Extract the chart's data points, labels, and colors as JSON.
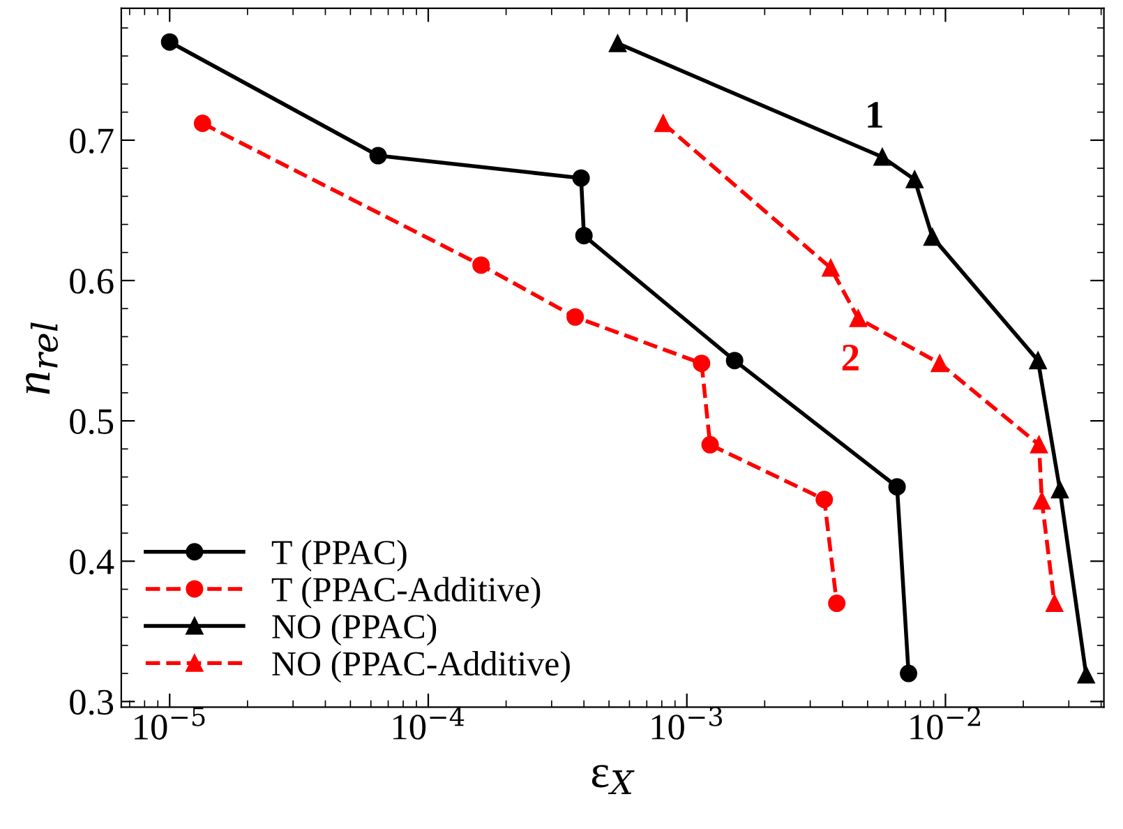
{
  "chart_data": {
    "type": "line",
    "xlabel": "ε$_{X}$",
    "ylabel": "n$_{rel}$",
    "log": "x",
    "grid": false,
    "legend": "bottom left",
    "xlim": [
      6.5e-06,
      0.041
    ],
    "ylim": [
      0.296,
      0.794
    ],
    "xticks": [
      {
        "value": 1e-05,
        "label": "10$^{−5}$"
      },
      {
        "value": 0.0001,
        "label": "10$^{−4}$"
      },
      {
        "value": 0.001,
        "label": "10$^{−3}$"
      },
      {
        "value": 0.01,
        "label": "10$^{−2}$"
      }
    ],
    "yticks": [
      0.3,
      0.4,
      0.5,
      0.6,
      0.7
    ],
    "series": [
      {
        "name": "T (PPAC)",
        "color": "#000000",
        "marker": "circle",
        "line_style": "solid",
        "x": [
          1e-05,
          6.4e-05,
          0.00039,
          0.0004,
          0.00153,
          0.0065,
          0.0072
        ],
        "values": [
          0.77,
          0.689,
          0.673,
          0.632,
          0.543,
          0.453,
          0.32
        ]
      },
      {
        "name": "T (PPAC-Additive)",
        "color": "#ff0000",
        "marker": "circle",
        "line_style": "dashed",
        "x": [
          1.34e-05,
          0.00016,
          0.00037,
          0.00114,
          0.00123,
          0.0034,
          0.0038
        ],
        "values": [
          0.712,
          0.611,
          0.574,
          0.541,
          0.483,
          0.444,
          0.37
        ]
      },
      {
        "name": "NO (PPAC)",
        "color": "#000000",
        "marker": "triangle",
        "line_style": "solid",
        "x": [
          0.00054,
          0.0057,
          0.0076,
          0.0089,
          0.0228,
          0.0277,
          0.035
        ],
        "values": [
          0.769,
          0.688,
          0.672,
          0.631,
          0.543,
          0.451,
          0.319
        ]
      },
      {
        "name": "NO (PPAC-Additive)",
        "color": "#ff0000",
        "marker": "triangle",
        "line_style": "dashed",
        "x": [
          0.00081,
          0.0036,
          0.0046,
          0.0095,
          0.023,
          0.0236,
          0.0264
        ],
        "values": [
          0.712,
          0.609,
          0.573,
          0.541,
          0.483,
          0.443,
          0.37
        ]
      }
    ],
    "annotations": [
      {
        "text": "1",
        "x": 0.0057,
        "y": 0.688
      },
      {
        "text": "2",
        "x": 0.0046,
        "y": 0.573
      }
    ]
  }
}
